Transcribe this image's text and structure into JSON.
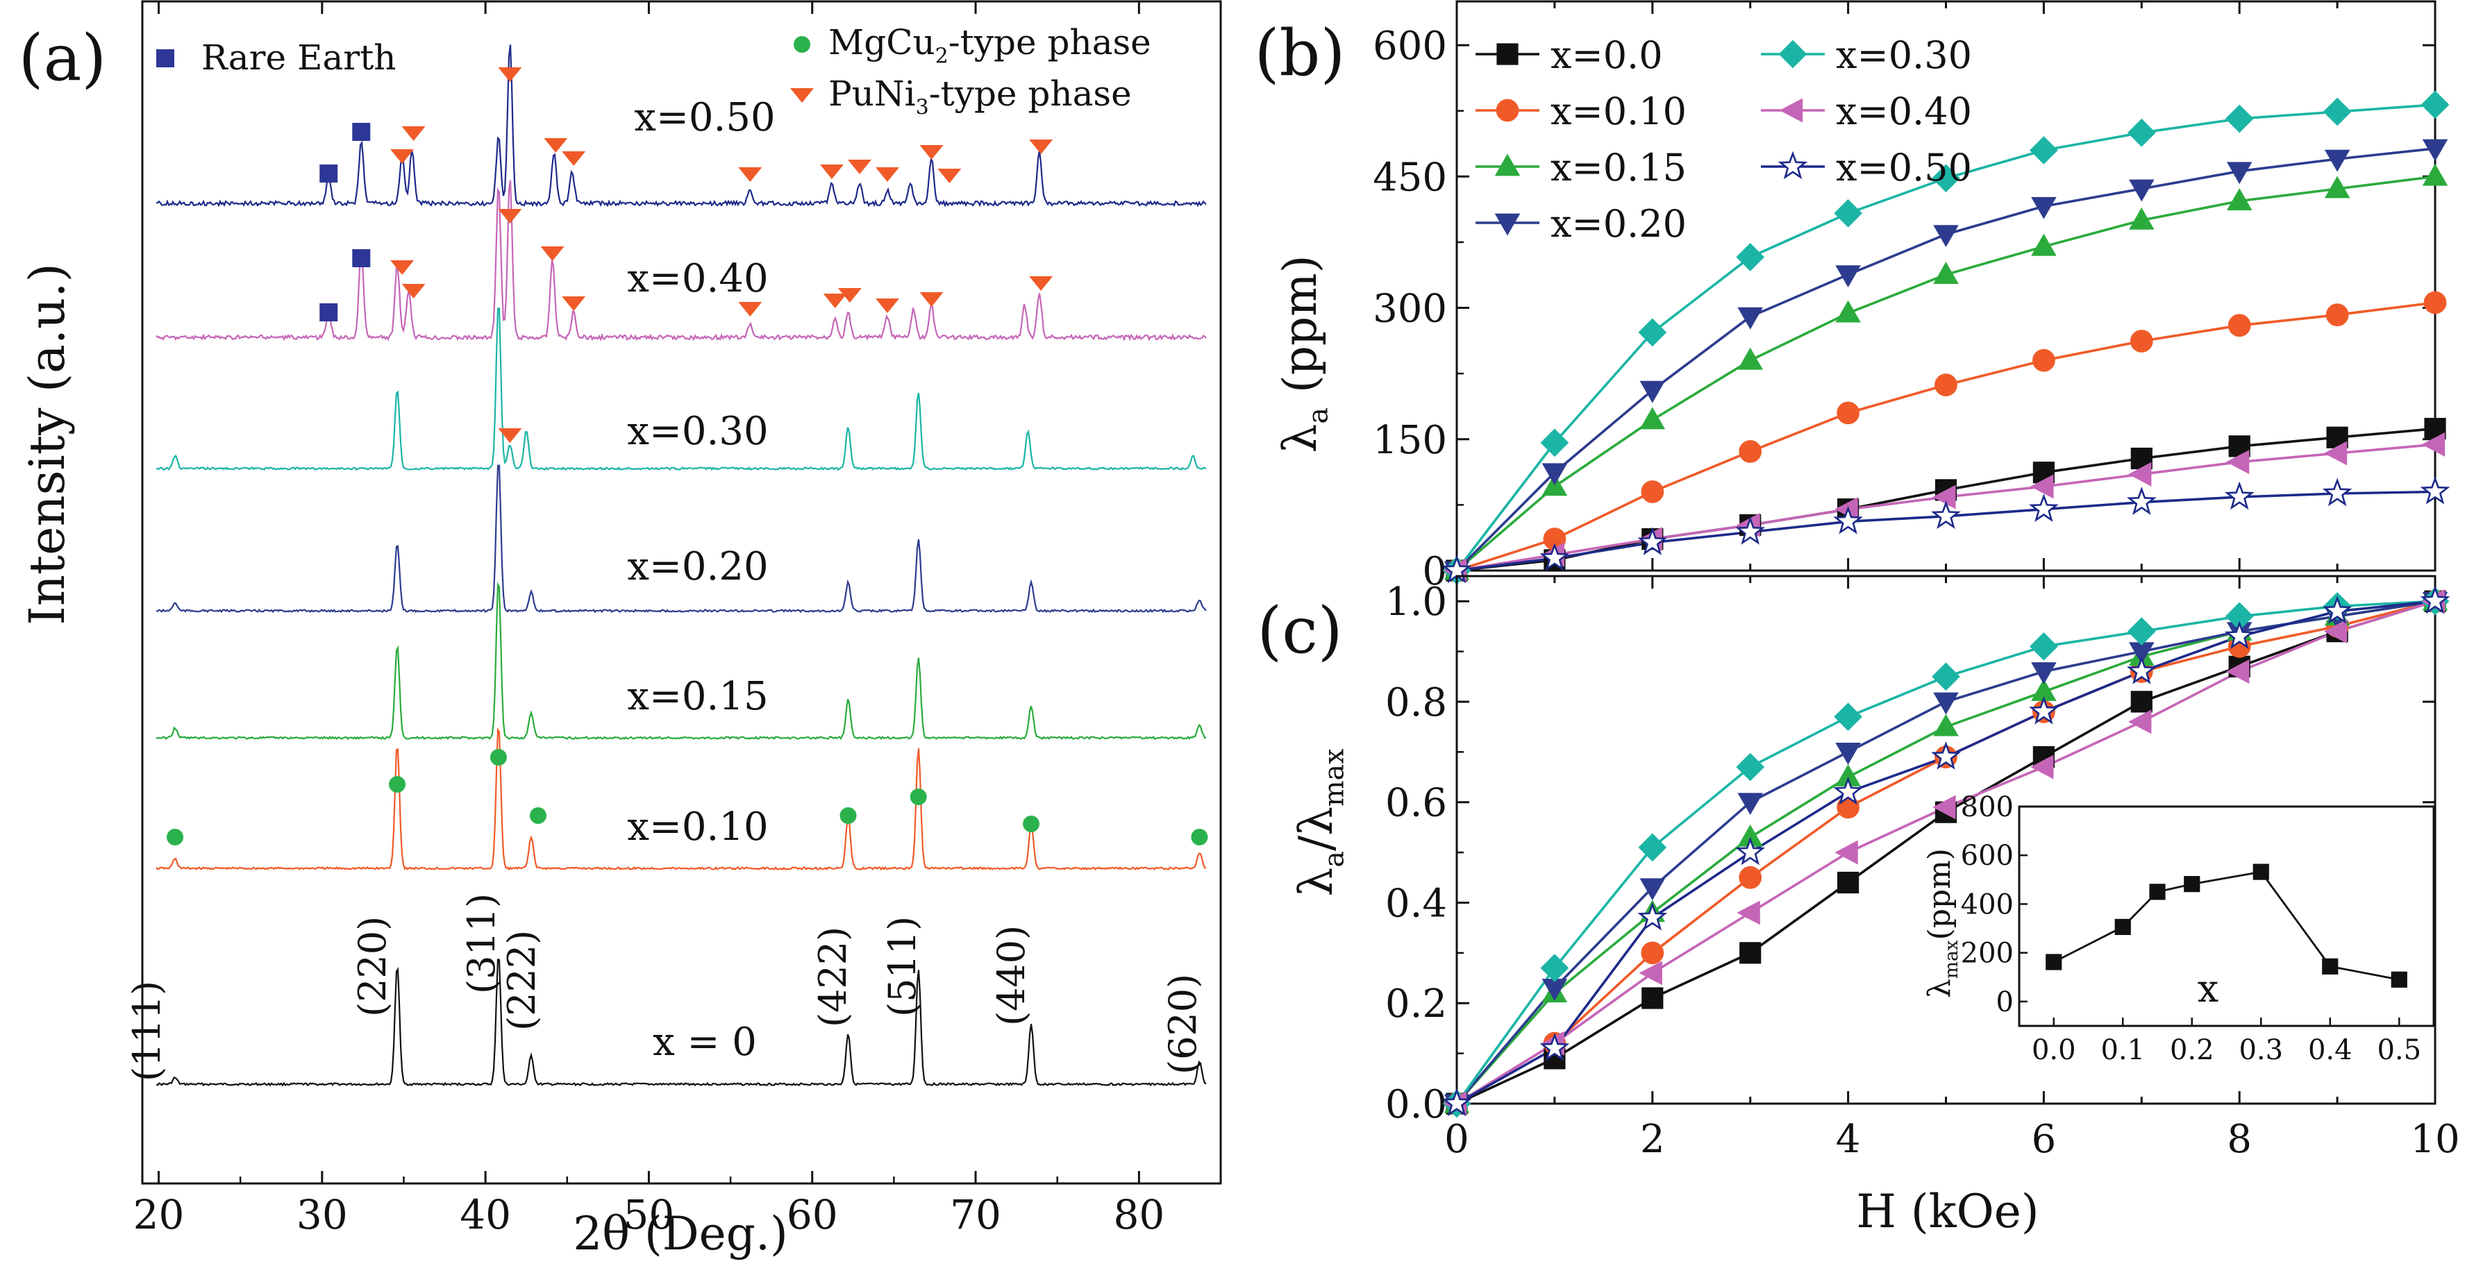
{
  "colors": {
    "x0": "#111111",
    "x010": "#f05a28",
    "x015": "#2bab3c",
    "x020": "#2d3c8e",
    "x030": "#1bb5a5",
    "x040": "#c565b8",
    "x050": "#1d2a8a",
    "rare_earth": "#2d3797",
    "mgcu2": "#2bb24c",
    "puni3": "#f05a28"
  },
  "chart_data": [
    {
      "panel": "a",
      "type": "line",
      "panel_label": "(a)",
      "xlabel": "2θ (Deg.)",
      "ylabel": "Intensity (a.u.)",
      "xlim": [
        19,
        85
      ],
      "xticks": [
        20,
        30,
        40,
        50,
        60,
        70,
        80
      ],
      "xtick_labels": [
        "20",
        "30",
        "40",
        "50",
        "60",
        "70",
        "80"
      ],
      "legend": {
        "rare_earth": "Rare Earth",
        "mgcu2_main": "MgCu",
        "mgcu2_sub": "2",
        "mgcu2_tail": "-type phase",
        "puni3_main": "PuNi",
        "puni3_sub": "3",
        "puni3_tail": "-type phase"
      },
      "peak_positions": [
        21.0,
        34.6,
        40.8,
        42.8,
        62.2,
        66.5,
        73.4,
        83.7
      ],
      "peak_labels": [
        "(111)",
        "(220)",
        "(311)",
        "(222)",
        "(422)",
        "(511)",
        "(440)",
        "(620)"
      ],
      "series": [
        {
          "name": "x = 0",
          "key": "x0",
          "peaks": [
            [
              21.0,
              0.04
            ],
            [
              34.6,
              0.75
            ],
            [
              40.8,
              0.82
            ],
            [
              42.8,
              0.18
            ],
            [
              62.2,
              0.32
            ],
            [
              66.5,
              0.72
            ],
            [
              73.4,
              0.38
            ],
            [
              83.7,
              0.14
            ]
          ]
        },
        {
          "name": "x=0.10",
          "key": "x010",
          "peaks": [
            [
              21.0,
              0.06
            ],
            [
              34.6,
              0.78
            ],
            [
              40.8,
              0.9
            ],
            [
              42.8,
              0.2
            ],
            [
              62.2,
              0.32
            ],
            [
              66.5,
              0.76
            ],
            [
              73.4,
              0.28
            ],
            [
              83.7,
              0.1
            ]
          ]
        },
        {
          "name": "x=0.15",
          "key": "x015",
          "peaks": [
            [
              21.0,
              0.06
            ],
            [
              34.6,
              0.58
            ],
            [
              40.8,
              1.0
            ],
            [
              42.8,
              0.16
            ],
            [
              62.2,
              0.24
            ],
            [
              66.5,
              0.5
            ],
            [
              73.4,
              0.2
            ],
            [
              83.7,
              0.08
            ]
          ]
        },
        {
          "name": "x=0.20",
          "key": "x020",
          "peaks": [
            [
              21.0,
              0.05
            ],
            [
              34.6,
              0.42
            ],
            [
              40.8,
              0.95
            ],
            [
              42.8,
              0.12
            ],
            [
              62.2,
              0.18
            ],
            [
              66.5,
              0.45
            ],
            [
              73.4,
              0.18
            ],
            [
              83.7,
              0.07
            ]
          ]
        },
        {
          "name": "x=0.30",
          "key": "x030",
          "peaks": [
            [
              21.0,
              0.08
            ],
            [
              34.6,
              0.5
            ],
            [
              40.8,
              1.05
            ],
            [
              41.5,
              0.15
            ],
            [
              42.5,
              0.24
            ],
            [
              62.2,
              0.26
            ],
            [
              66.5,
              0.48
            ],
            [
              73.2,
              0.24
            ],
            [
              83.3,
              0.08
            ]
          ]
        },
        {
          "name": "x=0.40",
          "key": "x040",
          "peaks": [
            [
              30.4,
              0.16
            ],
            [
              32.4,
              0.55
            ],
            [
              34.6,
              0.45
            ],
            [
              35.3,
              0.3
            ],
            [
              40.8,
              0.95
            ],
            [
              41.5,
              1.0
            ],
            [
              44.1,
              0.5
            ],
            [
              45.4,
              0.16
            ],
            [
              56.2,
              0.08
            ],
            [
              61.4,
              0.13
            ],
            [
              62.2,
              0.16
            ],
            [
              64.6,
              0.13
            ],
            [
              66.2,
              0.18
            ],
            [
              67.3,
              0.2
            ],
            [
              73.0,
              0.2
            ],
            [
              73.9,
              0.28
            ]
          ]
        },
        {
          "name": "x=0.50",
          "key": "x050",
          "peaks": [
            [
              30.4,
              0.16
            ],
            [
              32.4,
              0.4
            ],
            [
              34.9,
              0.3
            ],
            [
              35.5,
              0.33
            ],
            [
              40.8,
              0.42
            ],
            [
              41.5,
              1.0
            ],
            [
              44.2,
              0.32
            ],
            [
              45.3,
              0.2
            ],
            [
              56.2,
              0.08
            ],
            [
              61.2,
              0.13
            ],
            [
              62.9,
              0.13
            ],
            [
              64.6,
              0.08
            ],
            [
              66.0,
              0.13
            ],
            [
              67.3,
              0.28
            ],
            [
              73.9,
              0.32
            ]
          ]
        }
      ],
      "markers": {
        "rare_earth_x0.40": [
          30.4,
          32.4
        ],
        "rare_earth_x0.50": [
          30.4,
          32.4
        ],
        "puni3_x0.30": [
          41.5
        ],
        "puni3_x0.40": [
          34.9,
          35.6,
          41.5,
          44.1,
          45.4,
          56.2,
          61.4,
          62.3,
          64.6,
          67.3,
          74.0
        ],
        "puni3_x0.50": [
          34.9,
          35.6,
          41.5,
          44.3,
          45.4,
          56.2,
          61.2,
          62.9,
          64.6,
          67.3,
          68.4,
          74.0
        ],
        "mgcu2_x0.10": [
          21.0,
          34.6,
          40.8,
          42.8,
          62.2,
          66.5,
          73.4,
          83.7
        ]
      }
    },
    {
      "panel": "b",
      "type": "line",
      "panel_label": "(b)",
      "xlabel": "",
      "ylabel_main": "λ",
      "ylabel_sub": "a",
      "ylabel_unit": " (ppm)",
      "xlim": [
        0,
        10
      ],
      "ylim": [
        0,
        650
      ],
      "yticks": [
        0,
        150,
        300,
        450,
        600
      ],
      "ytick_labels": [
        "0",
        "150",
        "300",
        "450",
        "600"
      ],
      "x": [
        0,
        1,
        2,
        3,
        4,
        5,
        6,
        7,
        8,
        9,
        10
      ],
      "series": [
        {
          "name": "x=0.0",
          "key": "x0",
          "marker": "square",
          "values": [
            0,
            12,
            36,
            52,
            70,
            92,
            112,
            128,
            142,
            152,
            162
          ]
        },
        {
          "name": "x=0.10",
          "key": "x010",
          "marker": "circle",
          "values": [
            0,
            36,
            90,
            136,
            180,
            212,
            240,
            262,
            280,
            292,
            306
          ]
        },
        {
          "name": "x=0.15",
          "key": "x015",
          "marker": "triangle-up",
          "values": [
            0,
            96,
            172,
            240,
            294,
            338,
            370,
            400,
            422,
            436,
            450
          ]
        },
        {
          "name": "x=0.20",
          "key": "x020",
          "marker": "triangle-down",
          "values": [
            0,
            112,
            206,
            290,
            338,
            384,
            416,
            436,
            456,
            470,
            482
          ]
        },
        {
          "name": "x=0.30",
          "key": "x030",
          "marker": "diamond",
          "values": [
            0,
            146,
            272,
            358,
            408,
            448,
            480,
            500,
            516,
            524,
            532
          ]
        },
        {
          "name": "x=0.40",
          "key": "x040",
          "marker": "triangle-left",
          "values": [
            0,
            18,
            36,
            52,
            70,
            84,
            96,
            110,
            124,
            134,
            144
          ]
        },
        {
          "name": "x=0.50",
          "key": "x050",
          "marker": "star",
          "values": [
            0,
            14,
            32,
            44,
            56,
            62,
            70,
            78,
            84,
            88,
            90
          ]
        }
      ]
    },
    {
      "panel": "c",
      "type": "line",
      "panel_label": "(c)",
      "xlabel": "H (kOe)",
      "ylabel_main": "λ",
      "ylabel_sub": "a",
      "ylabel_mid": "/λ",
      "ylabel_sub2": "max",
      "xlim": [
        0,
        10
      ],
      "ylim": [
        0,
        1.05
      ],
      "xticks": [
        0,
        2,
        4,
        6,
        8,
        10
      ],
      "xtick_labels": [
        "0",
        "2",
        "4",
        "6",
        "8",
        "10"
      ],
      "yticks": [
        0,
        0.2,
        0.4,
        0.6,
        0.8,
        1.0
      ],
      "ytick_labels": [
        "0.0",
        "0.2",
        "0.4",
        "0.6",
        "0.8",
        "1.0"
      ],
      "x": [
        0,
        1,
        2,
        3,
        4,
        5,
        6,
        7,
        8,
        9,
        10
      ],
      "series": [
        {
          "name": "x=0.0",
          "key": "x0",
          "marker": "square",
          "values": [
            0,
            0.09,
            0.21,
            0.3,
            0.44,
            0.58,
            0.69,
            0.8,
            0.87,
            0.94,
            1.0
          ]
        },
        {
          "name": "x=0.10",
          "key": "x010",
          "marker": "circle",
          "values": [
            0,
            0.12,
            0.3,
            0.45,
            0.59,
            0.69,
            0.78,
            0.86,
            0.91,
            0.95,
            1.0
          ]
        },
        {
          "name": "x=0.15",
          "key": "x015",
          "marker": "triangle-up",
          "values": [
            0,
            0.22,
            0.38,
            0.53,
            0.65,
            0.75,
            0.82,
            0.89,
            0.94,
            0.97,
            1.0
          ]
        },
        {
          "name": "x=0.20",
          "key": "x020",
          "marker": "triangle-down",
          "values": [
            0,
            0.23,
            0.43,
            0.6,
            0.7,
            0.8,
            0.86,
            0.9,
            0.94,
            0.97,
            1.0
          ]
        },
        {
          "name": "x=0.30",
          "key": "x030",
          "marker": "diamond",
          "values": [
            0,
            0.27,
            0.51,
            0.67,
            0.77,
            0.85,
            0.91,
            0.94,
            0.97,
            0.99,
            1.0
          ]
        },
        {
          "name": "x=0.40",
          "key": "x040",
          "marker": "triangle-left",
          "values": [
            0,
            0.12,
            0.26,
            0.38,
            0.5,
            0.59,
            0.67,
            0.76,
            0.86,
            0.94,
            1.0
          ]
        },
        {
          "name": "x=0.50",
          "key": "x050",
          "marker": "star",
          "values": [
            0,
            0.11,
            0.37,
            0.5,
            0.62,
            0.69,
            0.78,
            0.86,
            0.93,
            0.98,
            1.0
          ]
        }
      ]
    },
    {
      "panel": "c-inset",
      "type": "line",
      "xlabel": "x",
      "ylabel_main": "λ",
      "ylabel_sub": "max",
      "ylabel_unit": "(ppm)",
      "xlim": [
        -0.05,
        0.55
      ],
      "ylim": [
        -100,
        800
      ],
      "xticks": [
        0.0,
        0.1,
        0.2,
        0.3,
        0.4,
        0.5
      ],
      "xtick_labels": [
        "0.0",
        "0.1",
        "0.2",
        "0.3",
        "0.4",
        "0.5"
      ],
      "yticks": [
        0,
        200,
        400,
        600,
        800
      ],
      "ytick_labels": [
        "0",
        "200",
        "400",
        "600",
        "800"
      ],
      "x": [
        0.0,
        0.1,
        0.15,
        0.2,
        0.3,
        0.4,
        0.5
      ],
      "values": [
        162,
        306,
        450,
        482,
        532,
        144,
        90
      ]
    }
  ]
}
